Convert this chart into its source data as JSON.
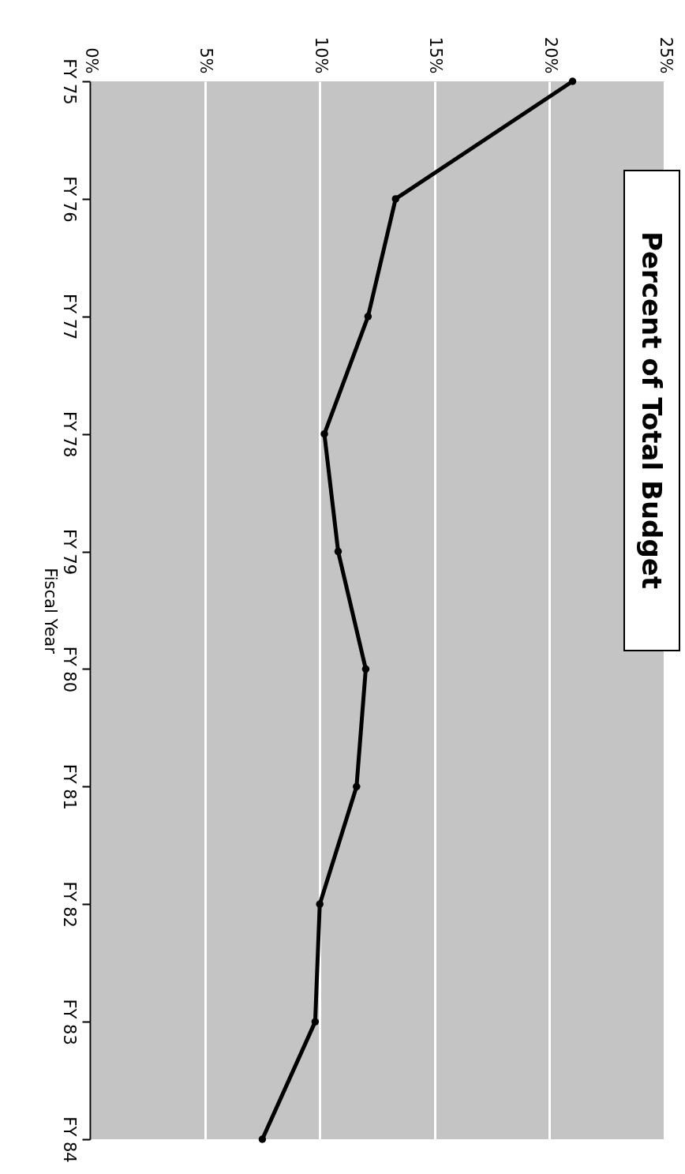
{
  "chart_data": {
    "type": "line",
    "orientation": "horizontal",
    "title": "Percent of Total Budget",
    "ylabel": "Fiscal Year",
    "categories": [
      "FY 75",
      "FY 76",
      "FY 77",
      "FY 78",
      "FY 79",
      "FY 80",
      "FY 81",
      "FY 82",
      "FY 83",
      "FY 84"
    ],
    "series": [
      {
        "color": "#000000",
        "values": [
          21,
          13.3,
          12.1,
          10.2,
          10.8,
          12,
          11.6,
          10,
          9.8,
          7.5
        ]
      }
    ],
    "xlim": [
      0,
      25
    ],
    "xticks": [
      {
        "value": 0,
        "label": "0%"
      },
      {
        "value": 5,
        "label": "5%"
      },
      {
        "value": 10,
        "label": "10%"
      },
      {
        "value": 15,
        "label": "15%"
      },
      {
        "value": 20,
        "label": "20%"
      },
      {
        "value": 25,
        "label": "25%"
      }
    ],
    "grid": "x",
    "marker": "circle",
    "line_style": "solid"
  }
}
